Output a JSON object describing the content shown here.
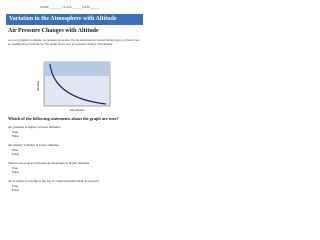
{
  "header": {
    "name": "NAME",
    "class": "CLASS",
    "date": "DATE"
  },
  "title": "Variation in the Atmosphere with Altitude",
  "section": "Air Pressure Changes with Altitude",
  "paragraph": "As you go higher in altitude, air pressure decreases. The air molecules are spread farther apart, so there is less air pushing down from above. The graph shows how air pressure changes with altitude.",
  "graph": {
    "y_label": "Altitude",
    "x_label": "Air pressure"
  },
  "prompt": "Which of the following statements about the graph are true?",
  "questions": [
    {
      "text": "Air pressure is higher at lower altitudes.",
      "options": [
        "True",
        "False"
      ]
    },
    {
      "text": "Air density is higher at lower altitudes.",
      "options": [
        "True",
        "False"
      ]
    },
    {
      "text": "There is more space between air molecules at higher altitudes.",
      "options": [
        "True",
        "False"
      ]
    },
    {
      "text": "Air is easier to breathe at the top of a high mountain than at sea level.",
      "options": [
        "True",
        "False"
      ]
    }
  ]
}
